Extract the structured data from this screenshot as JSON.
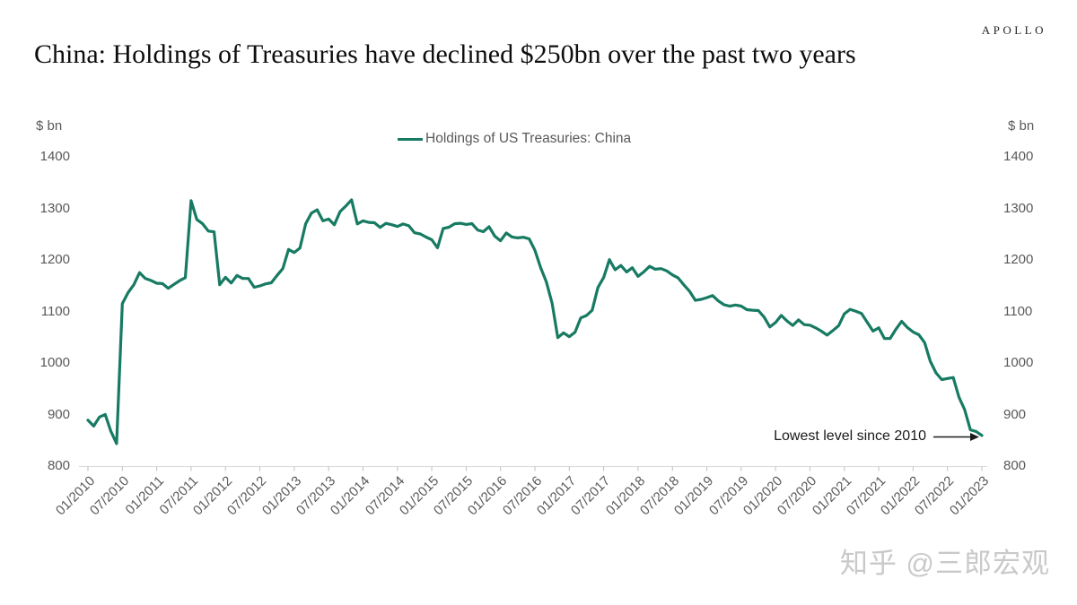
{
  "header": {
    "brand": "APOLLO",
    "title": "China: Holdings of Treasuries have declined $250bn over the past two years"
  },
  "watermark": {
    "text": "知乎 @三郎宏观"
  },
  "chart_data": {
    "type": "line",
    "title": "China: Holdings of Treasuries have declined $250bn over the past two years",
    "unit_label_left": "$ bn",
    "unit_label_right": "$ bn",
    "legend_position": "top-center",
    "grid": false,
    "line_color": "#177a62",
    "axis_color": "#d9d9d9",
    "tick_color": "#bfbfbf",
    "ylim": [
      800,
      1400
    ],
    "y_ticks": [
      1400,
      1300,
      1200,
      1100,
      1000,
      900,
      800
    ],
    "x_tick_labels": [
      "01/2010",
      "07/2010",
      "01/2011",
      "07/2011",
      "01/2012",
      "07/2012",
      "01/2013",
      "07/2013",
      "01/2014",
      "07/2014",
      "01/2015",
      "07/2015",
      "01/2016",
      "07/2016",
      "01/2017",
      "07/2017",
      "01/2018",
      "07/2018",
      "01/2019",
      "07/2019",
      "01/2020",
      "07/2020",
      "01/2021",
      "07/2021",
      "01/2022",
      "07/2022",
      "01/2023"
    ],
    "annotation": {
      "text": "Lowest level since 2010",
      "points_to": {
        "x": "01/2023",
        "y": 859
      }
    },
    "series": [
      {
        "name": "Holdings of US Treasuries: China",
        "frequency": "monthly",
        "start": "01/2010",
        "end": "01/2023",
        "values": [
          889.0,
          877.5,
          895.2,
          900.2,
          867.7,
          843.7,
          1115.1,
          1136.5,
          1151.9,
          1175.3,
          1164.1,
          1160.1,
          1154.7,
          1154.1,
          1144.9,
          1152.5,
          1159.8,
          1165.5,
          1314.9,
          1278.5,
          1270.3,
          1256.0,
          1254.6,
          1151.9,
          1166.2,
          1155.2,
          1169.9,
          1164.0,
          1164.0,
          1147.0,
          1149.5,
          1153.6,
          1155.6,
          1169.9,
          1183.1,
          1220.4,
          1214.2,
          1222.9,
          1270.3,
          1290.8,
          1297.3,
          1275.8,
          1279.3,
          1268.1,
          1293.8,
          1304.5,
          1316.7,
          1270.0,
          1275.9,
          1272.9,
          1272.1,
          1263.2,
          1270.9,
          1268.4,
          1264.9,
          1269.7,
          1266.3,
          1252.7,
          1250.4,
          1244.3,
          1239.1,
          1223.7,
          1261.0,
          1263.5,
          1270.3,
          1271.2,
          1268.8,
          1270.5,
          1258.0,
          1254.8,
          1264.5,
          1246.1,
          1237.3,
          1252.3,
          1244.6,
          1242.8,
          1244.0,
          1240.8,
          1218.8,
          1185.1,
          1157.0,
          1115.7,
          1049.3,
          1058.4,
          1051.1,
          1059.7,
          1087.5,
          1092.2,
          1102.2,
          1146.5,
          1166.0,
          1200.5,
          1180.8,
          1189.2,
          1176.6,
          1184.9,
          1168.2,
          1176.7,
          1187.7,
          1181.9,
          1183.1,
          1178.7,
          1171.0,
          1165.1,
          1151.4,
          1138.9,
          1121.5,
          1123.5,
          1126.7,
          1130.9,
          1120.5,
          1113.0,
          1110.2,
          1112.5,
          1110.4,
          1103.5,
          1102.4,
          1101.7,
          1089.1,
          1069.9,
          1078.6,
          1092.3,
          1081.6,
          1072.8,
          1083.7,
          1074.4,
          1073.4,
          1068.1,
          1061.7,
          1054.0,
          1063.0,
          1072.3,
          1095.4,
          1104.2,
          1100.4,
          1096.1,
          1078.9,
          1061.9,
          1068.3,
          1047.5,
          1047.6,
          1065.4,
          1080.8,
          1068.8,
          1060.1,
          1054.8,
          1039.6,
          1003.4,
          980.8,
          967.8,
          970.0,
          971.8,
          933.6,
          909.6,
          870.2,
          867.1,
          859.4
        ]
      }
    ]
  }
}
